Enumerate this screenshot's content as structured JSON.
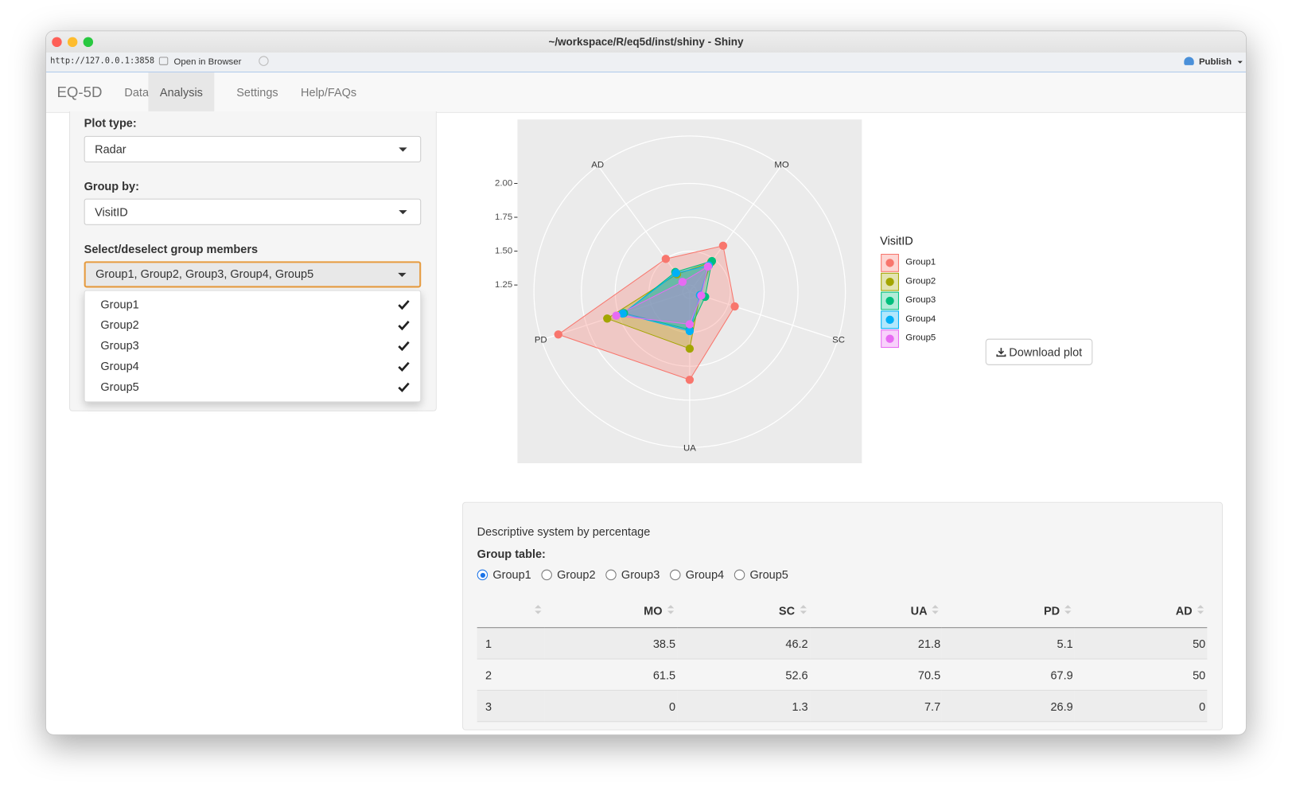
{
  "window": {
    "title": "~/workspace/R/eq5d/inst/shiny - Shiny",
    "url": "http://127.0.0.1:3858",
    "open_in_browser": "Open in Browser",
    "publish": "Publish"
  },
  "nav": {
    "brand": "EQ-5D",
    "tabs": [
      "Data",
      "Analysis",
      "Settings",
      "Help/FAQs"
    ]
  },
  "sidebar": {
    "plot_type_label": "Plot type:",
    "plot_type": "Radar",
    "group_by_label": "Group by:",
    "group_by": "VisitID",
    "members_label": "Select/deselect group members",
    "members_selected": "Group1, Group2, Group3, Group4, Group5",
    "members_options": [
      "Group1",
      "Group2",
      "Group3",
      "Group4",
      "Group5"
    ]
  },
  "chart_data": {
    "type": "radar",
    "categories": [
      "MO",
      "SC",
      "UA",
      "PD",
      "AD"
    ],
    "ylim": [
      1.2,
      2.35
    ],
    "yticks": [
      {
        "value": 2,
        "label": "2.00"
      },
      1.75,
      {
        "value": 1.5,
        "label": "1.50"
      },
      1.25
    ],
    "legend_title": "VisitID",
    "series": [
      {
        "name": "Group1",
        "color": "#F8766D",
        "values": [
          1.62,
          1.55,
          1.85,
          2.22,
          1.5
        ]
      },
      {
        "name": "Group2",
        "color": "#A3A500",
        "values": [
          1.47,
          1.28,
          1.62,
          1.84,
          1.36
        ]
      },
      {
        "name": "Group3",
        "color": "#00BF7D",
        "values": [
          1.48,
          1.32,
          1.48,
          1.71,
          1.38
        ]
      },
      {
        "name": "Group4",
        "color": "#00B0F6",
        "values": [
          1.44,
          1.28,
          1.49,
          1.72,
          1.37
        ]
      },
      {
        "name": "Group5",
        "color": "#E76BF3",
        "values": [
          1.43,
          1.29,
          1.44,
          1.77,
          1.29
        ]
      }
    ]
  },
  "download_button": "Download plot",
  "table_panel": {
    "title": "Descriptive system by percentage",
    "group_table_label": "Group table:",
    "radio_options": [
      "Group1",
      "Group2",
      "Group3",
      "Group4",
      "Group5"
    ]
  },
  "table": {
    "columns": [
      "MO",
      "SC",
      "UA",
      "PD",
      "AD"
    ],
    "rows": [
      [
        1,
        38.5,
        46.2,
        21.8,
        5.1,
        50
      ],
      [
        2,
        61.5,
        52.6,
        70.5,
        67.9,
        50
      ],
      [
        3,
        0,
        1.3,
        7.7,
        26.9,
        0
      ]
    ]
  }
}
